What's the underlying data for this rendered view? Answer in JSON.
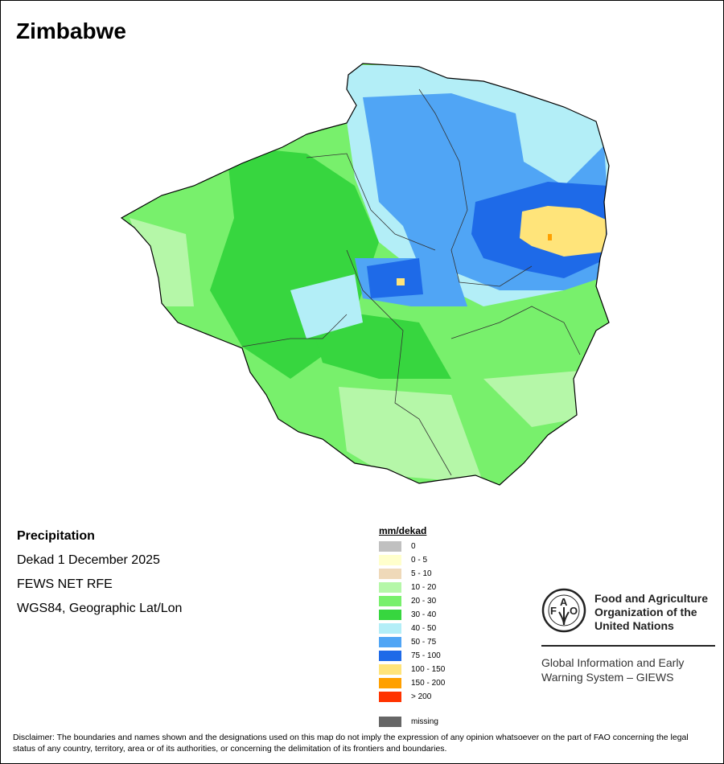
{
  "title": "Zimbabwe",
  "info": {
    "variable": "Precipitation",
    "period": "Dekad 1 December 2025",
    "source": "FEWS NET RFE",
    "projection": "WGS84, Geographic Lat/Lon"
  },
  "legend": {
    "title": "mm/dekad",
    "items": [
      {
        "label": "0",
        "color": "#c0c0c0"
      },
      {
        "label": "0 - 5",
        "color": "#ffffcc"
      },
      {
        "label": "5 - 10",
        "color": "#efd9b9"
      },
      {
        "label": "10 - 20",
        "color": "#b5f7a8"
      },
      {
        "label": "20 - 30",
        "color": "#78f06c"
      },
      {
        "label": "30 - 40",
        "color": "#37d63f"
      },
      {
        "label": "40 - 50",
        "color": "#b3eef7"
      },
      {
        "label": "50 - 75",
        "color": "#50a5f5"
      },
      {
        "label": "75 - 100",
        "color": "#1e6ae8"
      },
      {
        "label": "100 - 150",
        "color": "#ffe47a"
      },
      {
        "label": "150 - 200",
        "color": "#ffa000"
      },
      {
        "label": "> 200",
        "color": "#ff3300"
      }
    ],
    "missing": {
      "label": "missing",
      "color": "#666666"
    }
  },
  "org": {
    "logo_text": "FAO FIAT PANIS",
    "name_lines": [
      "Food and Agriculture",
      "Organization of the",
      "United Nations"
    ],
    "system_lines": [
      "Global Information and Early",
      "Warning System – GIEWS"
    ]
  },
  "disclaimer": "Disclaimer: The boundaries and names shown and the designations used on this map do not imply the expression of any opinion whatsoever on the part of FAO concerning the legal status of any country, territory, area or of its authorities, or concerning the delimitation of its frontiers and boundaries."
}
